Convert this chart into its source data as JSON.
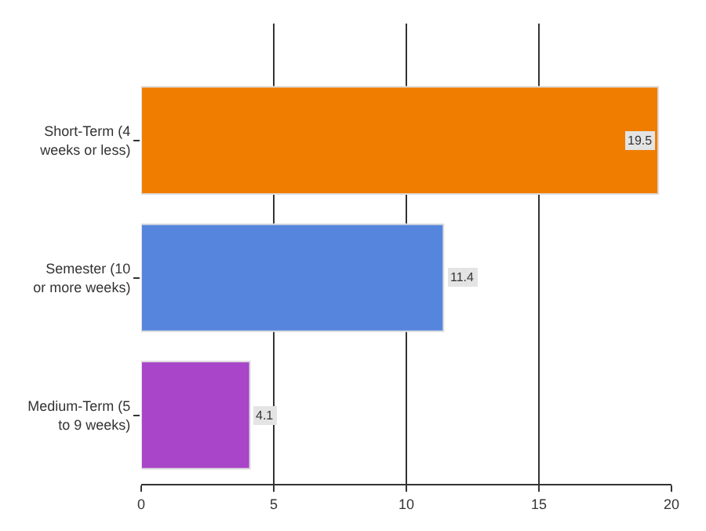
{
  "chart_data": {
    "type": "bar",
    "orientation": "horizontal",
    "categories": [
      "Short-Term (4 weeks or less)",
      "Semester (10 or more weeks)",
      "Medium-Term (5 to 9 weeks)"
    ],
    "values": [
      19.5,
      11.4,
      4.1
    ],
    "colors": [
      "#f07d00",
      "#5585dd",
      "#a845c8"
    ],
    "xlim": [
      0,
      20
    ],
    "xticks": [
      0,
      5,
      10,
      15,
      20
    ],
    "grid": "x",
    "data_labels": true
  }
}
